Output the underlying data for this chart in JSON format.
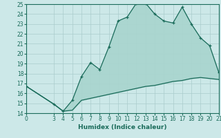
{
  "xlabel": "Humidex (Indice chaleur)",
  "background_color": "#cce8e8",
  "grid_color": "#aacccc",
  "line_color": "#1a6b5a",
  "fill_color": "#a8d4ce",
  "upper_x": [
    0,
    3,
    4,
    5,
    6,
    7,
    8,
    9,
    10,
    11,
    12,
    13,
    14,
    15,
    16,
    17,
    18,
    19,
    20,
    21
  ],
  "upper_y": [
    16.7,
    14.9,
    14.2,
    15.3,
    17.7,
    19.1,
    18.4,
    20.7,
    23.3,
    23.7,
    25.1,
    25.1,
    24.0,
    23.3,
    23.1,
    24.7,
    23.0,
    21.6,
    20.8,
    18.1
  ],
  "lower_x": [
    0,
    3,
    4,
    5,
    6,
    7,
    8,
    9,
    10,
    11,
    12,
    13,
    14,
    15,
    16,
    17,
    18,
    19,
    20,
    21
  ],
  "lower_y": [
    16.7,
    14.9,
    14.2,
    14.3,
    15.3,
    15.5,
    15.7,
    15.9,
    16.1,
    16.3,
    16.5,
    16.7,
    16.8,
    17.0,
    17.2,
    17.3,
    17.5,
    17.6,
    17.5,
    17.4
  ],
  "xlim": [
    0,
    21
  ],
  "ylim": [
    14,
    25
  ],
  "xticks": [
    0,
    3,
    4,
    5,
    6,
    7,
    8,
    9,
    10,
    11,
    12,
    13,
    14,
    15,
    16,
    17,
    18,
    19,
    20,
    21
  ],
  "yticks": [
    14,
    15,
    16,
    17,
    18,
    19,
    20,
    21,
    22,
    23,
    24,
    25
  ],
  "tick_fontsize": 5.5,
  "label_fontsize": 6.5
}
